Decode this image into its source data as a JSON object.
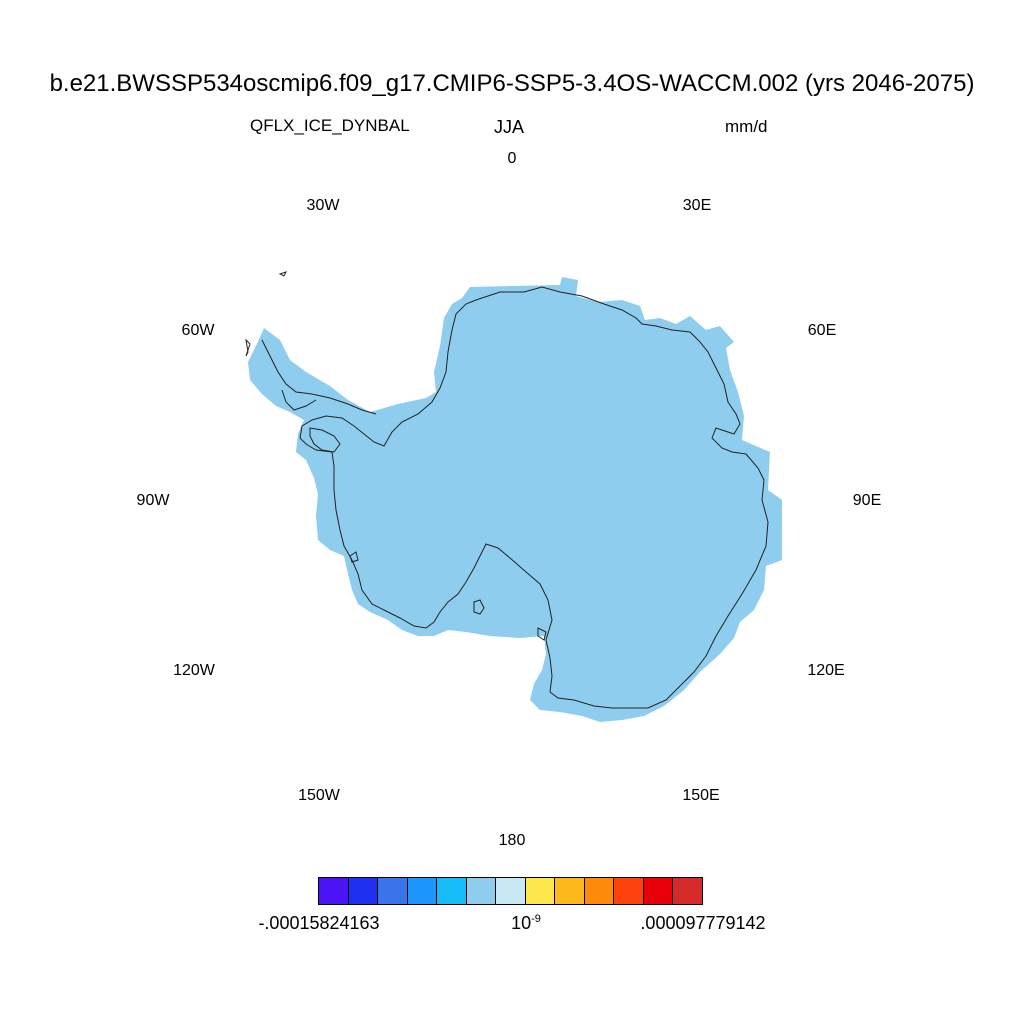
{
  "title": "b.e21.BWSSP534oscmip6.f09_g17.CMIP6-SSP5-3.4OS-WACCM.002 (yrs 2046-2075)",
  "variable": "QFLX_ICE_DYNBAL",
  "season": "JJA",
  "units": "mm/d",
  "longitude_labels": {
    "n0": "0",
    "w30": "30W",
    "e30": "30E",
    "w60": "60W",
    "e60": "60E",
    "w90": "90W",
    "e90": "90E",
    "w120": "120W",
    "e120": "120E",
    "w150": "150W",
    "e150": "150E",
    "s180": "180"
  },
  "field_color": "#8ecdee",
  "colorbar": {
    "colors": [
      "#4a14f5",
      "#2030f0",
      "#3a74ea",
      "#1c96fb",
      "#17bdf8",
      "#8ecdee",
      "#c8e8f4",
      "#fde74d",
      "#fdb91a",
      "#fd8a09",
      "#fd420e",
      "#e80008",
      "#d42a2a"
    ],
    "min_label": "-.00015824163",
    "mid_label_base": "10",
    "mid_label_exp": "-9",
    "max_label": ".000097779142"
  }
}
